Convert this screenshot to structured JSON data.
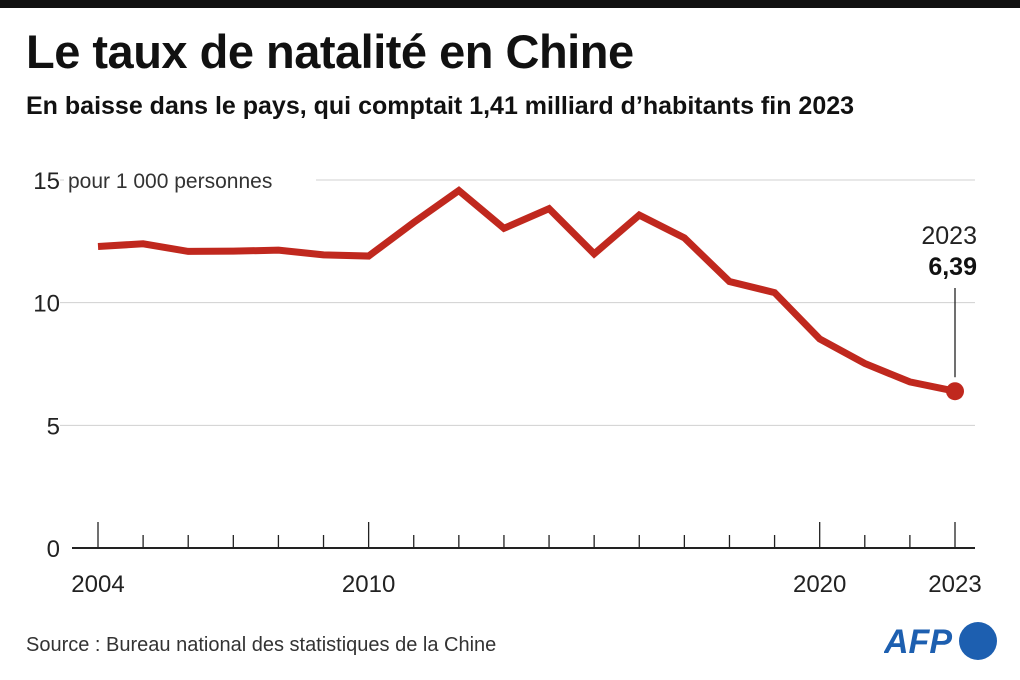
{
  "header": {
    "title": "Le taux de natalité en Chine",
    "subtitle": "En baisse dans le pays, qui comptait 1,41 milliard d’habitants fin 2023"
  },
  "footer": {
    "source": "Source : Bureau national des statistiques de la Chine",
    "logo": "AFP"
  },
  "chart_data": {
    "type": "line",
    "title": "Le taux de natalité en Chine",
    "ylabel": "pour 1 000 personnes",
    "ylim": [
      0,
      15
    ],
    "yticks": [
      0,
      5,
      10,
      15
    ],
    "xticks": [
      2004,
      2010,
      2020,
      2023
    ],
    "grid": true,
    "color": "#c0281e",
    "x": [
      2004,
      2005,
      2006,
      2007,
      2008,
      2009,
      2010,
      2011,
      2012,
      2013,
      2014,
      2015,
      2016,
      2017,
      2018,
      2019,
      2020,
      2021,
      2022,
      2023
    ],
    "values": [
      12.29,
      12.4,
      12.09,
      12.1,
      12.14,
      11.95,
      11.9,
      13.27,
      14.57,
      13.03,
      13.83,
      11.99,
      13.57,
      12.64,
      10.86,
      10.41,
      8.52,
      7.52,
      6.77,
      6.39
    ],
    "annotation": {
      "year": "2023",
      "value": "6,39"
    }
  }
}
